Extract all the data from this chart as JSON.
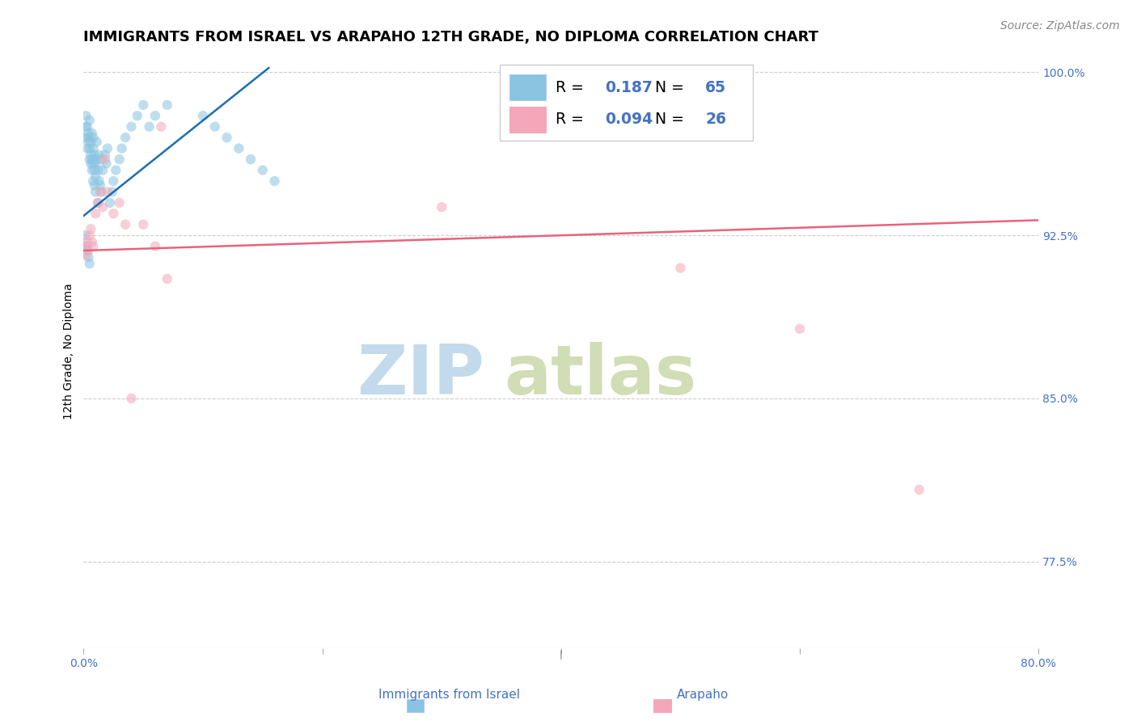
{
  "title": "IMMIGRANTS FROM ISRAEL VS ARAPAHO 12TH GRADE, NO DIPLOMA CORRELATION CHART",
  "source": "Source: ZipAtlas.com",
  "ylabel": "12th Grade, No Diploma",
  "blue_color": "#89c4e1",
  "pink_color": "#f4a7b9",
  "blue_line_color": "#1a6faf",
  "pink_line_color": "#e8637a",
  "watermark_zip": "ZIP",
  "watermark_atlas": "atlas",
  "watermark_color_zip": "#c8dff0",
  "watermark_color_atlas": "#d8e8c0",
  "blue_scatter_x": [
    0.001,
    0.002,
    0.002,
    0.003,
    0.003,
    0.004,
    0.004,
    0.004,
    0.005,
    0.005,
    0.005,
    0.006,
    0.006,
    0.006,
    0.007,
    0.007,
    0.007,
    0.008,
    0.008,
    0.008,
    0.008,
    0.009,
    0.009,
    0.009,
    0.01,
    0.01,
    0.01,
    0.011,
    0.011,
    0.012,
    0.012,
    0.013,
    0.013,
    0.014,
    0.015,
    0.015,
    0.016,
    0.018,
    0.019,
    0.02,
    0.022,
    0.024,
    0.025,
    0.027,
    0.03,
    0.032,
    0.035,
    0.04,
    0.045,
    0.05,
    0.055,
    0.06,
    0.07,
    0.1,
    0.11,
    0.12,
    0.13,
    0.14,
    0.15,
    0.16,
    0.001,
    0.002,
    0.003,
    0.004,
    0.005
  ],
  "blue_scatter_y": [
    0.97,
    0.975,
    0.98,
    0.965,
    0.975,
    0.97,
    0.968,
    0.972,
    0.96,
    0.965,
    0.978,
    0.958,
    0.962,
    0.968,
    0.955,
    0.96,
    0.972,
    0.95,
    0.958,
    0.965,
    0.97,
    0.948,
    0.955,
    0.962,
    0.945,
    0.952,
    0.958,
    0.96,
    0.968,
    0.94,
    0.955,
    0.95,
    0.962,
    0.948,
    0.945,
    0.96,
    0.955,
    0.962,
    0.958,
    0.965,
    0.94,
    0.945,
    0.95,
    0.955,
    0.96,
    0.965,
    0.97,
    0.975,
    0.98,
    0.985,
    0.975,
    0.98,
    0.985,
    0.98,
    0.975,
    0.97,
    0.965,
    0.96,
    0.955,
    0.95,
    0.925,
    0.92,
    0.918,
    0.915,
    0.912
  ],
  "pink_scatter_x": [
    0.001,
    0.002,
    0.003,
    0.004,
    0.005,
    0.006,
    0.007,
    0.008,
    0.01,
    0.012,
    0.014,
    0.016,
    0.018,
    0.02,
    0.025,
    0.03,
    0.035,
    0.04,
    0.05,
    0.06,
    0.065,
    0.07,
    0.3,
    0.5,
    0.6,
    0.7
  ],
  "pink_scatter_y": [
    0.92,
    0.916,
    0.922,
    0.918,
    0.925,
    0.928,
    0.922,
    0.92,
    0.935,
    0.94,
    0.945,
    0.938,
    0.96,
    0.945,
    0.935,
    0.94,
    0.93,
    0.85,
    0.93,
    0.92,
    0.975,
    0.905,
    0.938,
    0.91,
    0.882,
    0.808
  ],
  "xmin": 0.0,
  "xmax": 0.8,
  "ymin": 0.735,
  "ymax": 1.008,
  "blue_trendline_x": [
    0.0,
    0.155
  ],
  "blue_trendline_y": [
    0.934,
    1.002
  ],
  "pink_trendline_x": [
    0.0,
    0.8
  ],
  "pink_trendline_y": [
    0.918,
    0.932
  ],
  "ytick_vals": [
    0.775,
    0.85,
    0.925,
    1.0
  ],
  "ytick_labels": [
    "77.5%",
    "85.0%",
    "92.5%",
    "100.0%"
  ],
  "xtick_vals": [
    0.0,
    0.2,
    0.4,
    0.6,
    0.8
  ],
  "xtick_labels": [
    "0.0%",
    "",
    "",
    "",
    "80.0%"
  ],
  "grid_color": "#cccccc",
  "title_fontsize": 13,
  "axis_label_fontsize": 10,
  "tick_fontsize": 10,
  "source_fontsize": 10,
  "scatter_alpha": 0.55,
  "scatter_size": 80,
  "legend_r_blue": "0.187",
  "legend_n_blue": "65",
  "legend_r_pink": "0.094",
  "legend_n_pink": "26",
  "blue_text_color": "#4472c4",
  "pink_text_color": "#4472c4",
  "bottom_label_blue": "Immigrants from Israel",
  "bottom_label_pink": "Arapaho"
}
